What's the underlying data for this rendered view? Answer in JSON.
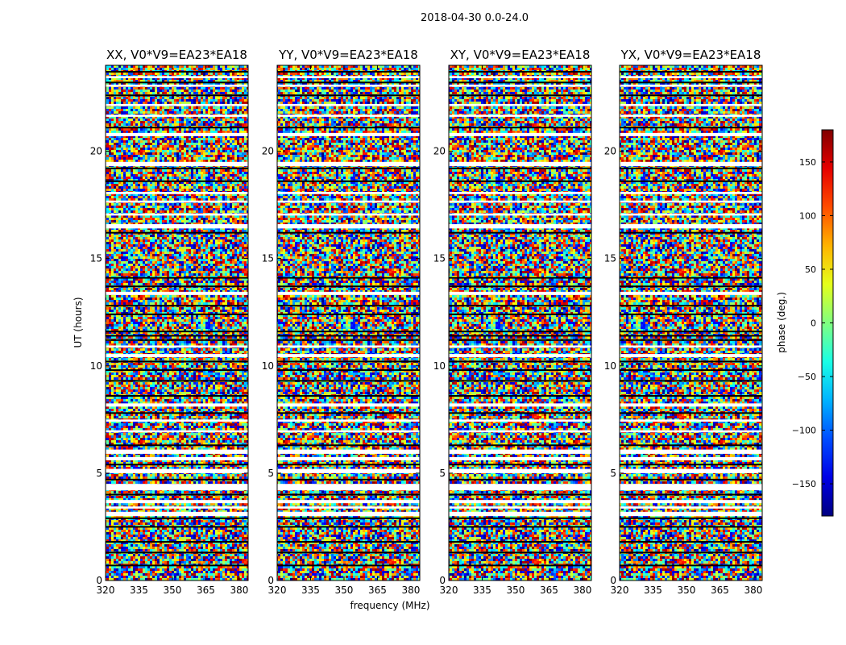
{
  "figure_title": "2018-04-30 0.0-24.0",
  "colors": {
    "background": "#ffffff",
    "axis": "#000000",
    "gap_row": "#ffffff",
    "flag_row": "#000000"
  },
  "chart_data": {
    "type": "heatmap",
    "title": "2018-04-30 0.0-24.0",
    "xlabel": "frequency (MHz)",
    "ylabel": "UT (hours)",
    "xlim": [
      320,
      384
    ],
    "ylim": [
      0,
      24
    ],
    "xticks": [
      320,
      335,
      350,
      365,
      380
    ],
    "yticks": [
      0,
      5,
      10,
      15,
      20
    ],
    "grid": false,
    "panels": [
      {
        "title": "XX, V0*V9=EA23*EA18",
        "polarization": "XX",
        "baseline": "V0*V9=EA23*EA18"
      },
      {
        "title": "YY, V0*V9=EA23*EA18",
        "polarization": "YY",
        "baseline": "V0*V9=EA23*EA18"
      },
      {
        "title": "XY, V0*V9=EA23*EA18",
        "polarization": "XY",
        "baseline": "V0*V9=EA23*EA18"
      },
      {
        "title": "YX, V0*V9=EA23*EA18",
        "polarization": "YX",
        "baseline": "V0*V9=EA23*EA18"
      }
    ],
    "data_gaps_ut_hours": [
      [
        3.0,
        3.2
      ],
      [
        3.35,
        3.45
      ],
      [
        3.6,
        3.75
      ],
      [
        4.2,
        4.5
      ],
      [
        5.0,
        5.2
      ],
      [
        5.6,
        5.75
      ],
      [
        5.9,
        6.1
      ],
      [
        6.9,
        7.0
      ],
      [
        7.4,
        7.5
      ],
      [
        8.1,
        8.25
      ],
      [
        10.4,
        10.55
      ],
      [
        10.85,
        10.95
      ],
      [
        13.3,
        13.45
      ],
      [
        16.4,
        16.6
      ],
      [
        17.0,
        17.1
      ],
      [
        17.6,
        17.7
      ],
      [
        18.0,
        18.1
      ],
      [
        19.3,
        19.5
      ],
      [
        20.7,
        20.85
      ],
      [
        21.6,
        21.7
      ],
      [
        22.1,
        22.2
      ],
      [
        23.0,
        23.1
      ],
      [
        23.4,
        23.5
      ]
    ],
    "flagged_ut_hours": [
      0.7,
      1.3,
      1.8,
      2.5,
      2.9,
      4.0,
      4.7,
      5.4,
      6.3,
      7.8,
      8.6,
      9.3,
      9.8,
      10.2,
      11.2,
      11.4,
      11.6,
      12.4,
      12.8,
      13.7,
      14.1,
      16.2,
      18.6,
      19.2,
      21.1,
      22.6,
      23.2,
      23.7
    ],
    "colorbar": {
      "label": "phase (deg.)",
      "range": [
        -180,
        180
      ],
      "ticks": [
        -150,
        -100,
        -50,
        0,
        50,
        100,
        150
      ],
      "colormap": "jet"
    }
  }
}
